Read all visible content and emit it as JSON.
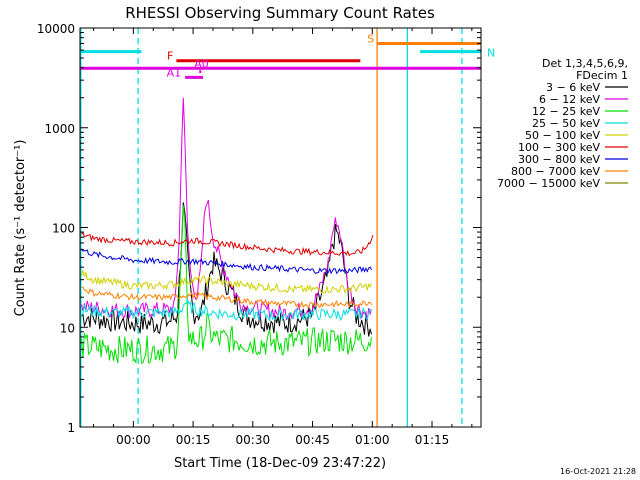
{
  "chart_data": {
    "type": "line",
    "title": "RHESSI Observing Summary Count Rates",
    "xlabel": "Start Time (18-Dec-09 23:47:22)",
    "ylabel": "Count Rate (s⁻¹ detector⁻¹)",
    "y_scale": "log",
    "ylim": [
      1,
      10000
    ],
    "xlim_minutes": [
      -13.4,
      87.3
    ],
    "x_ticks": [
      {
        "label": "00:00",
        "min": 0
      },
      {
        "label": "00:15",
        "min": 15
      },
      {
        "label": "00:30",
        "min": 30
      },
      {
        "label": "00:45",
        "min": 45
      },
      {
        "label": "01:00",
        "min": 60
      },
      {
        "label": "01:15",
        "min": 75
      }
    ],
    "y_ticks": [
      {
        "label": "1",
        "value": 1
      },
      {
        "label": "10",
        "value": 10
      },
      {
        "label": "100",
        "value": 100
      },
      {
        "label": "1000",
        "value": 1000
      },
      {
        "label": "10000",
        "value": 10000
      }
    ],
    "legend": {
      "placement": "right",
      "header": [
        "Det 1,3,4,5,6,9,",
        "FDecim 1"
      ],
      "entries": [
        {
          "label": "3 − 6 keV",
          "color": "#000000"
        },
        {
          "label": "6 − 12 keV",
          "color": "#e000e0"
        },
        {
          "label": "12 − 25 keV",
          "color": "#00e000"
        },
        {
          "label": "25 − 50 keV",
          "color": "#00e0e0"
        },
        {
          "label": "50 − 100 keV",
          "color": "#d0d000"
        },
        {
          "label": "100 − 300 keV",
          "color": "#e00000"
        },
        {
          "label": "300 − 800 keV",
          "color": "#0000e0"
        },
        {
          "label": "800 − 7000 keV",
          "color": "#ff8000"
        },
        {
          "label": "7000 − 15000 keV",
          "color": "#808000"
        }
      ]
    },
    "series": [
      {
        "name": "3 − 6 keV",
        "color": "#000000",
        "points": [
          [
            -13,
            13
          ],
          [
            -5,
            11.5
          ],
          [
            0,
            11
          ],
          [
            5,
            11
          ],
          [
            9,
            11.5
          ],
          [
            11,
            13
          ],
          [
            12,
            60
          ],
          [
            12.5,
            160
          ],
          [
            13,
            110
          ],
          [
            14,
            30
          ],
          [
            15,
            14
          ],
          [
            17,
            14
          ],
          [
            19,
            30
          ],
          [
            20,
            45
          ],
          [
            22,
            35
          ],
          [
            24,
            25
          ],
          [
            26,
            18
          ],
          [
            28,
            13
          ],
          [
            32,
            12
          ],
          [
            38,
            11
          ],
          [
            42,
            12
          ],
          [
            45,
            13
          ],
          [
            47,
            20
          ],
          [
            49,
            35
          ],
          [
            50,
            70
          ],
          [
            51,
            90
          ],
          [
            52,
            70
          ],
          [
            53,
            40
          ],
          [
            54,
            20
          ],
          [
            56,
            13
          ],
          [
            58,
            11
          ],
          [
            60,
            10
          ]
        ]
      },
      {
        "name": "6 − 12 keV",
        "color": "#e000e0",
        "points": [
          [
            -13,
            16
          ],
          [
            -5,
            15
          ],
          [
            0,
            14.5
          ],
          [
            5,
            15
          ],
          [
            9,
            15
          ],
          [
            10.5,
            17
          ],
          [
            11.5,
            80
          ],
          [
            12,
            350
          ],
          [
            12.5,
            2600
          ],
          [
            13,
            700
          ],
          [
            13.5,
            100
          ],
          [
            14.5,
            30
          ],
          [
            16,
            20
          ],
          [
            17,
            40
          ],
          [
            18,
            150
          ],
          [
            18.5,
            200
          ],
          [
            19,
            150
          ],
          [
            20,
            80
          ],
          [
            22,
            45
          ],
          [
            24,
            30
          ],
          [
            26,
            20
          ],
          [
            28,
            16
          ],
          [
            32,
            15
          ],
          [
            38,
            14
          ],
          [
            42,
            15
          ],
          [
            45,
            16
          ],
          [
            47,
            25
          ],
          [
            49,
            45
          ],
          [
            50,
            90
          ],
          [
            51,
            120
          ],
          [
            52,
            85
          ],
          [
            53,
            45
          ],
          [
            54,
            25
          ],
          [
            56,
            16
          ],
          [
            58,
            14
          ],
          [
            60,
            14
          ]
        ]
      },
      {
        "name": "12 − 25 keV",
        "color": "#00e000",
        "points": [
          [
            -13,
            6.5
          ],
          [
            -5,
            6
          ],
          [
            0,
            6
          ],
          [
            5,
            6
          ],
          [
            10,
            6.2
          ],
          [
            11,
            7
          ],
          [
            12,
            40
          ],
          [
            12.5,
            150
          ],
          [
            13,
            80
          ],
          [
            13.5,
            20
          ],
          [
            14,
            8
          ],
          [
            15,
            7.5
          ],
          [
            17,
            7.5
          ],
          [
            18,
            9
          ],
          [
            18.5,
            11
          ],
          [
            19,
            9
          ],
          [
            21,
            7.5
          ],
          [
            25,
            7.5
          ],
          [
            30,
            7
          ],
          [
            35,
            7
          ],
          [
            40,
            7
          ],
          [
            45,
            7.2
          ],
          [
            50,
            7.5
          ],
          [
            55,
            7.3
          ],
          [
            60,
            7.5
          ]
        ]
      },
      {
        "name": "25 − 50 keV",
        "color": "#00e0e0",
        "points": [
          [
            -13,
            15
          ],
          [
            -5,
            14
          ],
          [
            0,
            14
          ],
          [
            5,
            14
          ],
          [
            10,
            14
          ],
          [
            12,
            15
          ],
          [
            13,
            18
          ],
          [
            14,
            16
          ],
          [
            16,
            15
          ],
          [
            20,
            14
          ],
          [
            25,
            13.5
          ],
          [
            30,
            13.5
          ],
          [
            35,
            13
          ],
          [
            40,
            13.5
          ],
          [
            45,
            13.5
          ],
          [
            50,
            13.5
          ],
          [
            55,
            13.5
          ],
          [
            60,
            14
          ]
        ]
      },
      {
        "name": "50 − 100 keV",
        "color": "#d0d000",
        "points": [
          [
            -13,
            35
          ],
          [
            -10,
            30
          ],
          [
            -5,
            28
          ],
          [
            0,
            26
          ],
          [
            5,
            26
          ],
          [
            10,
            27
          ],
          [
            13,
            29
          ],
          [
            17,
            30
          ],
          [
            20,
            29
          ],
          [
            25,
            27
          ],
          [
            30,
            26
          ],
          [
            35,
            25
          ],
          [
            40,
            24
          ],
          [
            45,
            24
          ],
          [
            50,
            24
          ],
          [
            55,
            24.5
          ],
          [
            60,
            26
          ]
        ]
      },
      {
        "name": "100 − 300 keV",
        "color": "#e00000",
        "points": [
          [
            -13,
            85
          ],
          [
            -10,
            78
          ],
          [
            -5,
            74
          ],
          [
            0,
            72
          ],
          [
            5,
            71
          ],
          [
            10,
            70
          ],
          [
            13,
            73
          ],
          [
            15,
            74
          ],
          [
            18,
            72
          ],
          [
            20,
            71
          ],
          [
            25,
            67
          ],
          [
            30,
            63
          ],
          [
            35,
            60
          ],
          [
            40,
            58
          ],
          [
            45,
            57
          ],
          [
            50,
            56
          ],
          [
            55,
            55
          ],
          [
            57,
            57
          ],
          [
            58,
            60
          ],
          [
            59,
            68
          ],
          [
            60,
            80
          ],
          [
            60.5,
            110
          ]
        ]
      },
      {
        "name": "300 − 800 keV",
        "color": "#0000e0",
        "points": [
          [
            -13,
            60
          ],
          [
            -10,
            54
          ],
          [
            -5,
            50
          ],
          [
            0,
            47
          ],
          [
            5,
            46
          ],
          [
            10,
            45
          ],
          [
            13,
            46
          ],
          [
            15,
            46
          ],
          [
            18,
            45
          ],
          [
            20,
            44
          ],
          [
            25,
            42
          ],
          [
            30,
            40
          ],
          [
            35,
            39
          ],
          [
            40,
            38
          ],
          [
            45,
            37
          ],
          [
            50,
            37
          ],
          [
            55,
            37
          ],
          [
            58,
            38
          ],
          [
            60,
            40
          ]
        ]
      },
      {
        "name": "800 − 7000 keV",
        "color": "#ff8000",
        "points": [
          [
            -13,
            25
          ],
          [
            -10,
            22
          ],
          [
            -5,
            21
          ],
          [
            0,
            20
          ],
          [
            5,
            20
          ],
          [
            10,
            20
          ],
          [
            13,
            21
          ],
          [
            15,
            21
          ],
          [
            18,
            20.5
          ],
          [
            20,
            20
          ],
          [
            25,
            19
          ],
          [
            30,
            18
          ],
          [
            35,
            17.5
          ],
          [
            40,
            17
          ],
          [
            45,
            17
          ],
          [
            50,
            17
          ],
          [
            55,
            17
          ],
          [
            58,
            17.5
          ],
          [
            60,
            18
          ]
        ]
      },
      {
        "name": "7000 − 15000 keV",
        "color": "#808000",
        "points": []
      }
    ],
    "flag_bars": [
      {
        "label": "N",
        "color": "#00e0e0",
        "segments": [
          [
            -13.4,
            2.0
          ],
          [
            72.0,
            87.3
          ]
        ],
        "level": 5800
      },
      {
        "label": "S",
        "color": "#ff8000",
        "segments": [
          [
            61.2,
            87.3
          ]
        ],
        "level": 7000
      },
      {
        "label": "F",
        "color": "#e00000",
        "segments": [
          [
            10.8,
            57.0
          ]
        ],
        "level": 4700
      },
      {
        "label": "",
        "color": "#e000e0",
        "segments": [
          [
            -13.4,
            87.3
          ]
        ],
        "level": 3950
      },
      {
        "label": "A0",
        "color": "#e000e0",
        "segments": [
          [
            16.8,
            16.8
          ]
        ],
        "level": 3650
      },
      {
        "label": "A1",
        "color": "#e000e0",
        "segments": [
          [
            13.0,
            17.5
          ]
        ],
        "level": 3200
      }
    ],
    "vertical_lines": [
      {
        "min": -13.2,
        "color": "#00e0e0",
        "style": "solid"
      },
      {
        "min": 1.2,
        "color": "#00e0e0",
        "style": "dashed"
      },
      {
        "min": 61.2,
        "color": "#ff8000",
        "style": "solid"
      },
      {
        "min": 68.8,
        "color": "#00e0e0",
        "style": "solid"
      },
      {
        "min": 82.5,
        "color": "#00e0e0",
        "style": "dashed"
      }
    ]
  },
  "timestamp": "16-Oct-2021 21:28"
}
